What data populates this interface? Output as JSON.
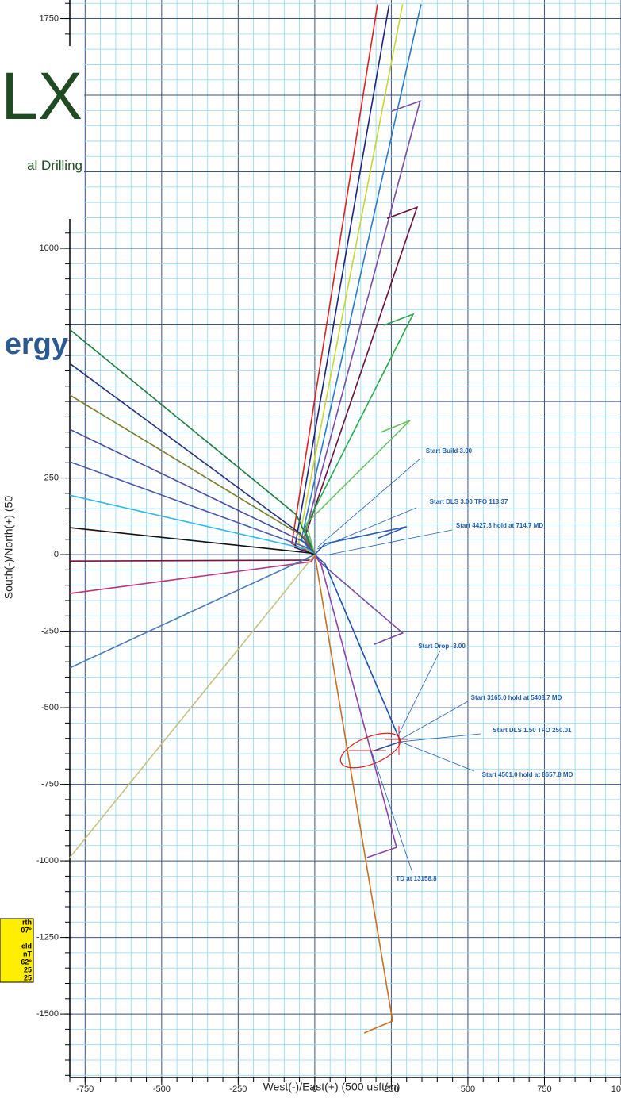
{
  "chart_data": {
    "type": "line",
    "x_label": "West(-)/East(+) (500 usft/in)",
    "y_label": "South(-)/North(+) (50",
    "xlim": [
      -800,
      1000
    ],
    "ylim": [
      -1707,
      1811
    ],
    "xticks": [
      -750,
      -500,
      -250,
      0,
      250,
      500,
      750,
      1000
    ],
    "yticks": [
      1750,
      1000,
      250,
      0,
      -250,
      -500,
      -750,
      -1000,
      -1250,
      -1500
    ],
    "grid": true,
    "minor_grid_step": 50,
    "major_grid_step": 250,
    "series": [
      {
        "color": "#e02020",
        "x": [
          0,
          -75,
          205
        ],
        "y": [
          0,
          36,
          1797
        ]
      },
      {
        "color": "#1c237a",
        "x": [
          0,
          -65,
          243
        ],
        "y": [
          0,
          23,
          1797
        ]
      },
      {
        "color": "#c8d630",
        "x": [
          0,
          -54,
          287
        ],
        "y": [
          0,
          36,
          1797
        ]
      },
      {
        "color": "#2a7ac8",
        "x": [
          0,
          -44,
          347
        ],
        "y": [
          0,
          49,
          1797
        ]
      },
      {
        "color": "#7a4aa8",
        "x": [
          0,
          -34,
          344,
          251
        ],
        "y": [
          0,
          60,
          1481,
          1448
        ]
      },
      {
        "color": "#6a0e3a",
        "x": [
          0,
          -28,
          334,
          236
        ],
        "y": [
          0,
          70,
          1134,
          1098
        ]
      },
      {
        "color": "#2aa84a",
        "x": [
          0,
          -34,
          321,
          225
        ],
        "y": [
          0,
          83,
          785,
          749
        ]
      },
      {
        "color": "#6ac060",
        "x": [
          0,
          -28,
          311,
          215
        ],
        "y": [
          0,
          101,
          438,
          399
        ]
      },
      {
        "color": "#1e7a3a",
        "x": [
          0,
          -60,
          -800
        ],
        "y": [
          0,
          130,
          735
        ]
      },
      {
        "color": "#23307a",
        "x": [
          0,
          -49,
          -800
        ],
        "y": [
          0,
          70,
          624
        ]
      },
      {
        "color": "#7a7a2a",
        "x": [
          0,
          -39,
          -800
        ],
        "y": [
          0,
          60,
          521
        ]
      },
      {
        "color": "#4a4aa0",
        "x": [
          0,
          -31,
          -800
        ],
        "y": [
          0,
          39,
          409
        ]
      },
      {
        "color": "#4a58b0",
        "x": [
          0,
          -26,
          -800
        ],
        "y": [
          0,
          23,
          303
        ]
      },
      {
        "color": "#30b8e8",
        "x": [
          0,
          -18,
          -800
        ],
        "y": [
          0,
          16,
          194
        ]
      },
      {
        "color": "#111111",
        "x": [
          0,
          -13,
          -800
        ],
        "y": [
          0,
          5,
          88
        ]
      },
      {
        "color": "#7a1040",
        "x": [
          0,
          -13,
          -800
        ],
        "y": [
          0,
          -18,
          -21
        ]
      },
      {
        "color": "#c03080",
        "x": [
          0,
          -10,
          -800
        ],
        "y": [
          0,
          -23,
          -127
        ]
      },
      {
        "color": "#4a78b8",
        "x": [
          0,
          -800
        ],
        "y": [
          0,
          -370
        ]
      },
      {
        "color": "#c8c080",
        "x": [
          0,
          -800
        ],
        "y": [
          0,
          -989
        ]
      },
      {
        "color": "#7a4aa8",
        "x": [
          0,
          21,
          287,
          194
        ],
        "y": [
          0,
          -28,
          -256,
          -293
        ]
      },
      {
        "color": "#2a58b0",
        "x": [
          0,
          34,
          300,
          207
        ],
        "y": [
          0,
          36,
          91,
          54
        ]
      },
      {
        "color": "#1f4fa8",
        "x": [
          0,
          34,
          280,
          194
        ],
        "y": [
          0,
          -31,
          -611,
          -640
        ]
      },
      {
        "color": "#8a40a8",
        "x": [
          0,
          21,
          267,
          171
        ],
        "y": [
          0,
          -34,
          -956,
          -989
        ]
      },
      {
        "color": "#c87020",
        "x": [
          0,
          254,
          161
        ],
        "y": [
          0,
          -1523,
          -1562
        ]
      }
    ],
    "annotations": [
      "Start Build 3.00",
      "Start DLS 3.00 TFO 113.37",
      "Start 4427.3 hold at 714.7 MD",
      "Start Drop -3.00",
      "Start 3165.0 hold at 5408.7 MD",
      "Start DLS 1.50 TFO 250.01",
      "Start 4501.0 hold at 8657.8 MD",
      "TD at 13158.8"
    ]
  },
  "logos": {
    "top": "LX",
    "top_sub": "al Drilling",
    "middle": "ergy"
  },
  "info_box": [
    "rth",
    "07°",
    "eld",
    "nT",
    "62°",
    "25",
    "25"
  ]
}
